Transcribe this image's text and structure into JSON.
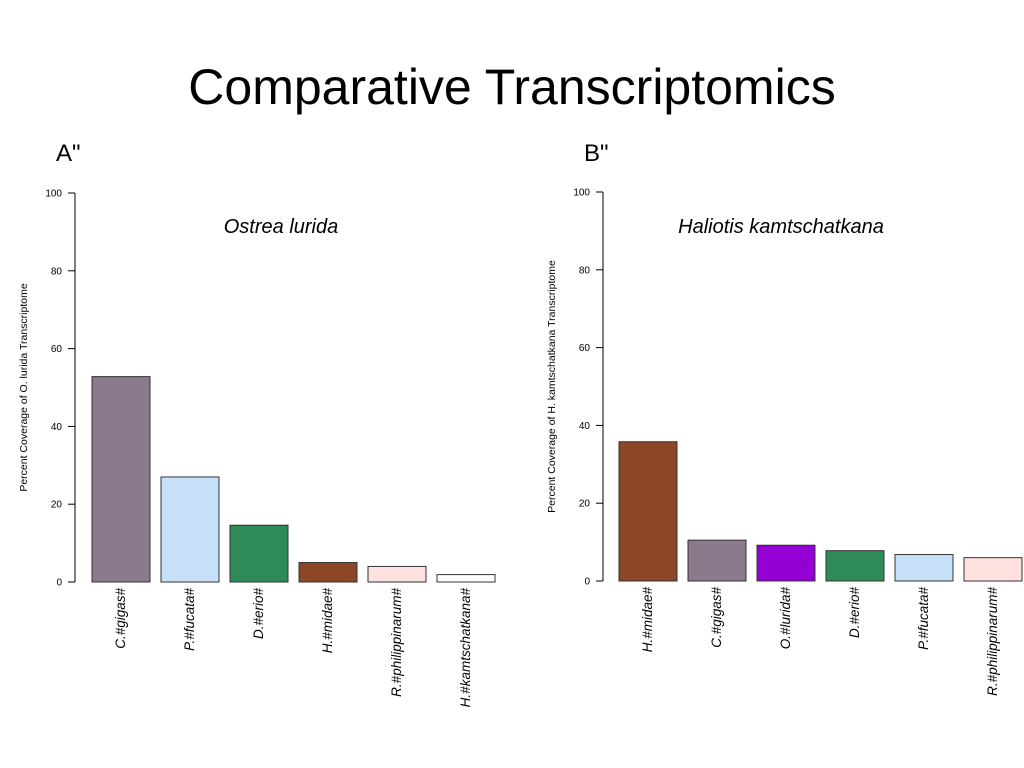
{
  "slide": {
    "title": "Comparative Transcriptomics",
    "panel_a_label": "A\"",
    "panel_b_label": "B\""
  },
  "chart_data": [
    {
      "type": "bar",
      "title": "Ostrea lurida",
      "xlabel": "",
      "ylabel": "Percent Coverage of O. lurida Transcriptome",
      "ylim": [
        0,
        100
      ],
      "yticks": [
        0,
        20,
        40,
        60,
        80,
        100
      ],
      "categories": [
        "C.#gigas#",
        "P.#fucata#",
        "D.#erio#",
        "H.#midae#",
        "R.#philippinarum#",
        "H.#kamtschatkana#"
      ],
      "values": [
        52.8,
        27,
        14.6,
        5,
        4,
        1.9
      ],
      "colors": [
        "#8b7a8c",
        "#c6e0fa",
        "#2e8b57",
        "#8b4726",
        "#ffe2e0",
        "#ffffff"
      ]
    },
    {
      "type": "bar",
      "title": "Haliotis kamtschatkana",
      "xlabel": "",
      "ylabel": "Percent Coverage of H. kamtschatkana Transcriptome",
      "ylim": [
        0,
        100
      ],
      "yticks": [
        0,
        20,
        40,
        60,
        80,
        100
      ],
      "categories": [
        "H.#midae#",
        "C.#gigas#",
        "O.#lurida#",
        "D.#erio#",
        "P.#fucata#",
        "R.#philippinarum#"
      ],
      "values": [
        35.8,
        10.5,
        9.2,
        7.8,
        6.8,
        6
      ],
      "colors": [
        "#8b4726",
        "#8b7a8c",
        "#9400d3",
        "#2e8b57",
        "#c6e0fa",
        "#ffe2e0"
      ]
    }
  ]
}
